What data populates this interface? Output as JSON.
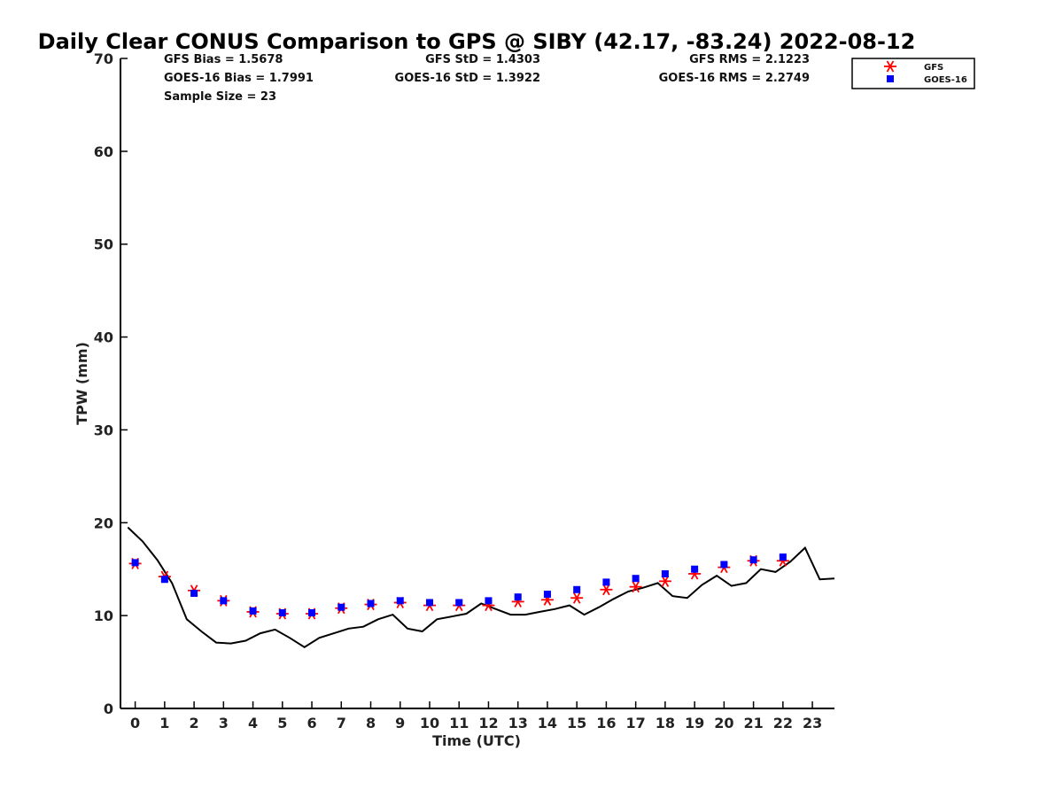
{
  "chart_data": {
    "type": "scatter",
    "title": "Daily Clear CONUS Comparison to GPS @ SIBY (42.17, -83.24) 2022-08-12",
    "xlabel": "Time (UTC)",
    "ylabel": "TPW (mm)",
    "xlim": [
      -0.5,
      23.75
    ],
    "ylim": [
      0,
      70
    ],
    "x_ticks": [
      "0",
      "1",
      "2",
      "3",
      "4",
      "5",
      "6",
      "7",
      "8",
      "9",
      "10",
      "11",
      "12",
      "13",
      "14",
      "15",
      "16",
      "17",
      "18",
      "19",
      "20",
      "21",
      "22",
      "23"
    ],
    "y_ticks": [
      "0",
      "10",
      "20",
      "30",
      "40",
      "50",
      "60",
      "70"
    ],
    "grid": false,
    "legend_position": "top-right",
    "series": [
      {
        "name": "GFS",
        "marker": "asterisk",
        "color": "#ff0000",
        "x": [
          0,
          1,
          2,
          3,
          4,
          5,
          6,
          7,
          8,
          9,
          10,
          11,
          12,
          13,
          14,
          15,
          16,
          17,
          18,
          19,
          20,
          21,
          22
        ],
        "y": [
          15.6,
          14.2,
          12.7,
          11.6,
          10.4,
          10.2,
          10.2,
          10.8,
          11.2,
          11.4,
          11.1,
          11.1,
          11.1,
          11.5,
          11.7,
          11.9,
          12.8,
          13.1,
          13.7,
          14.5,
          15.2,
          15.9,
          15.9
        ]
      },
      {
        "name": "GOES-16",
        "marker": "square",
        "color": "#0000ff",
        "x": [
          0,
          1,
          2,
          3,
          4,
          5,
          6,
          7,
          8,
          9,
          10,
          11,
          12,
          13,
          14,
          15,
          16,
          17,
          18,
          19,
          20,
          21,
          22
        ],
        "y": [
          15.7,
          13.9,
          12.4,
          11.6,
          10.5,
          10.3,
          10.3,
          10.9,
          11.3,
          11.6,
          11.4,
          11.4,
          11.6,
          12.0,
          12.3,
          12.8,
          13.6,
          14.0,
          14.5,
          15.0,
          15.5,
          16.0,
          16.3
        ]
      },
      {
        "type": "line",
        "color": "#000000",
        "x": [
          -0.25,
          0.25,
          0.75,
          1.25,
          1.75,
          2.25,
          2.75,
          3.25,
          3.75,
          4.25,
          4.75,
          5.25,
          5.75,
          6.25,
          6.75,
          7.25,
          7.75,
          8.25,
          8.75,
          9.25,
          9.75,
          10.25,
          10.75,
          11.25,
          11.75,
          12.25,
          12.75,
          13.25,
          13.75,
          14.25,
          14.75,
          15.25,
          15.75,
          16.25,
          16.75,
          17.25,
          17.75,
          18.25,
          18.75,
          19.25,
          19.75,
          20.25,
          20.75,
          21.25,
          21.75,
          22.25,
          22.75,
          23.25,
          23.75
        ],
        "y": [
          19.5,
          18.0,
          16.0,
          13.5,
          9.6,
          8.3,
          7.1,
          7.0,
          7.3,
          8.1,
          8.5,
          7.6,
          6.6,
          7.6,
          8.1,
          8.6,
          8.8,
          9.6,
          10.1,
          8.6,
          8.3,
          9.6,
          9.9,
          10.2,
          11.3,
          10.7,
          10.1,
          10.1,
          10.4,
          10.7,
          11.1,
          10.1,
          10.9,
          11.8,
          12.6,
          13.0,
          13.5,
          12.1,
          11.9,
          13.3,
          14.3,
          13.2,
          13.5,
          15.0,
          14.7,
          15.8,
          17.3,
          13.9,
          14.0
        ]
      }
    ],
    "stats": [
      {
        "label": "GFS Bias = 1.5678",
        "col": 0,
        "row": 0
      },
      {
        "label": "GFS StD = 1.4303",
        "col": 1,
        "row": 0
      },
      {
        "label": "GFS RMS = 2.1223",
        "col": 2,
        "row": 0
      },
      {
        "label": "GOES-16 Bias = 1.7991",
        "col": 0,
        "row": 1
      },
      {
        "label": "GOES-16 StD = 1.3922",
        "col": 1,
        "row": 1
      },
      {
        "label": "GOES-16 RMS = 2.2749",
        "col": 2,
        "row": 1
      },
      {
        "label": "Sample Size = 23",
        "col": 0,
        "row": 2
      }
    ]
  }
}
